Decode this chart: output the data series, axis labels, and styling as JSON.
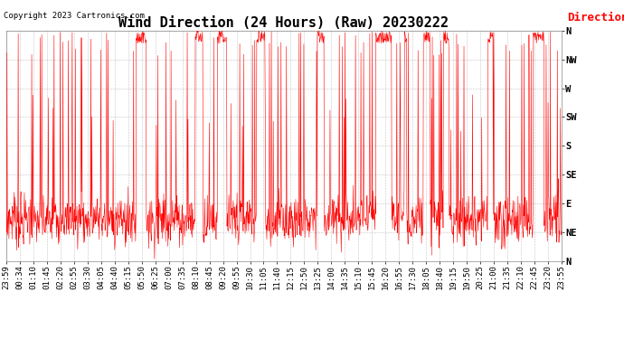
{
  "title": "Wind Direction (24 Hours) (Raw) 20230222",
  "copyright": "Copyright 2023 Cartronics.com",
  "legend_label": "Direction",
  "background_color": "#ffffff",
  "plot_color": "#ff0000",
  "grid_color": "#999999",
  "ytick_labels": [
    "N",
    "NW",
    "W",
    "SW",
    "S",
    "SE",
    "E",
    "NE",
    "N"
  ],
  "ytick_values": [
    360,
    315,
    270,
    225,
    180,
    135,
    90,
    45,
    0
  ],
  "ylim": [
    0,
    360
  ],
  "title_fontsize": 11,
  "tick_fontsize": 6.5,
  "copyright_fontsize": 6.5,
  "legend_fontsize": 9,
  "line_width": 0.4,
  "time_labels": [
    "23:59",
    "00:34",
    "01:10",
    "01:45",
    "02:20",
    "02:55",
    "03:30",
    "04:05",
    "04:40",
    "05:15",
    "05:50",
    "06:25",
    "07:00",
    "07:35",
    "08:10",
    "08:45",
    "09:20",
    "09:55",
    "10:30",
    "11:05",
    "11:40",
    "12:15",
    "12:50",
    "13:25",
    "14:00",
    "14:35",
    "15:10",
    "15:45",
    "16:20",
    "16:55",
    "17:30",
    "18:05",
    "18:40",
    "19:15",
    "19:50",
    "20:25",
    "21:00",
    "21:35",
    "22:10",
    "22:45",
    "23:20",
    "23:55"
  ]
}
